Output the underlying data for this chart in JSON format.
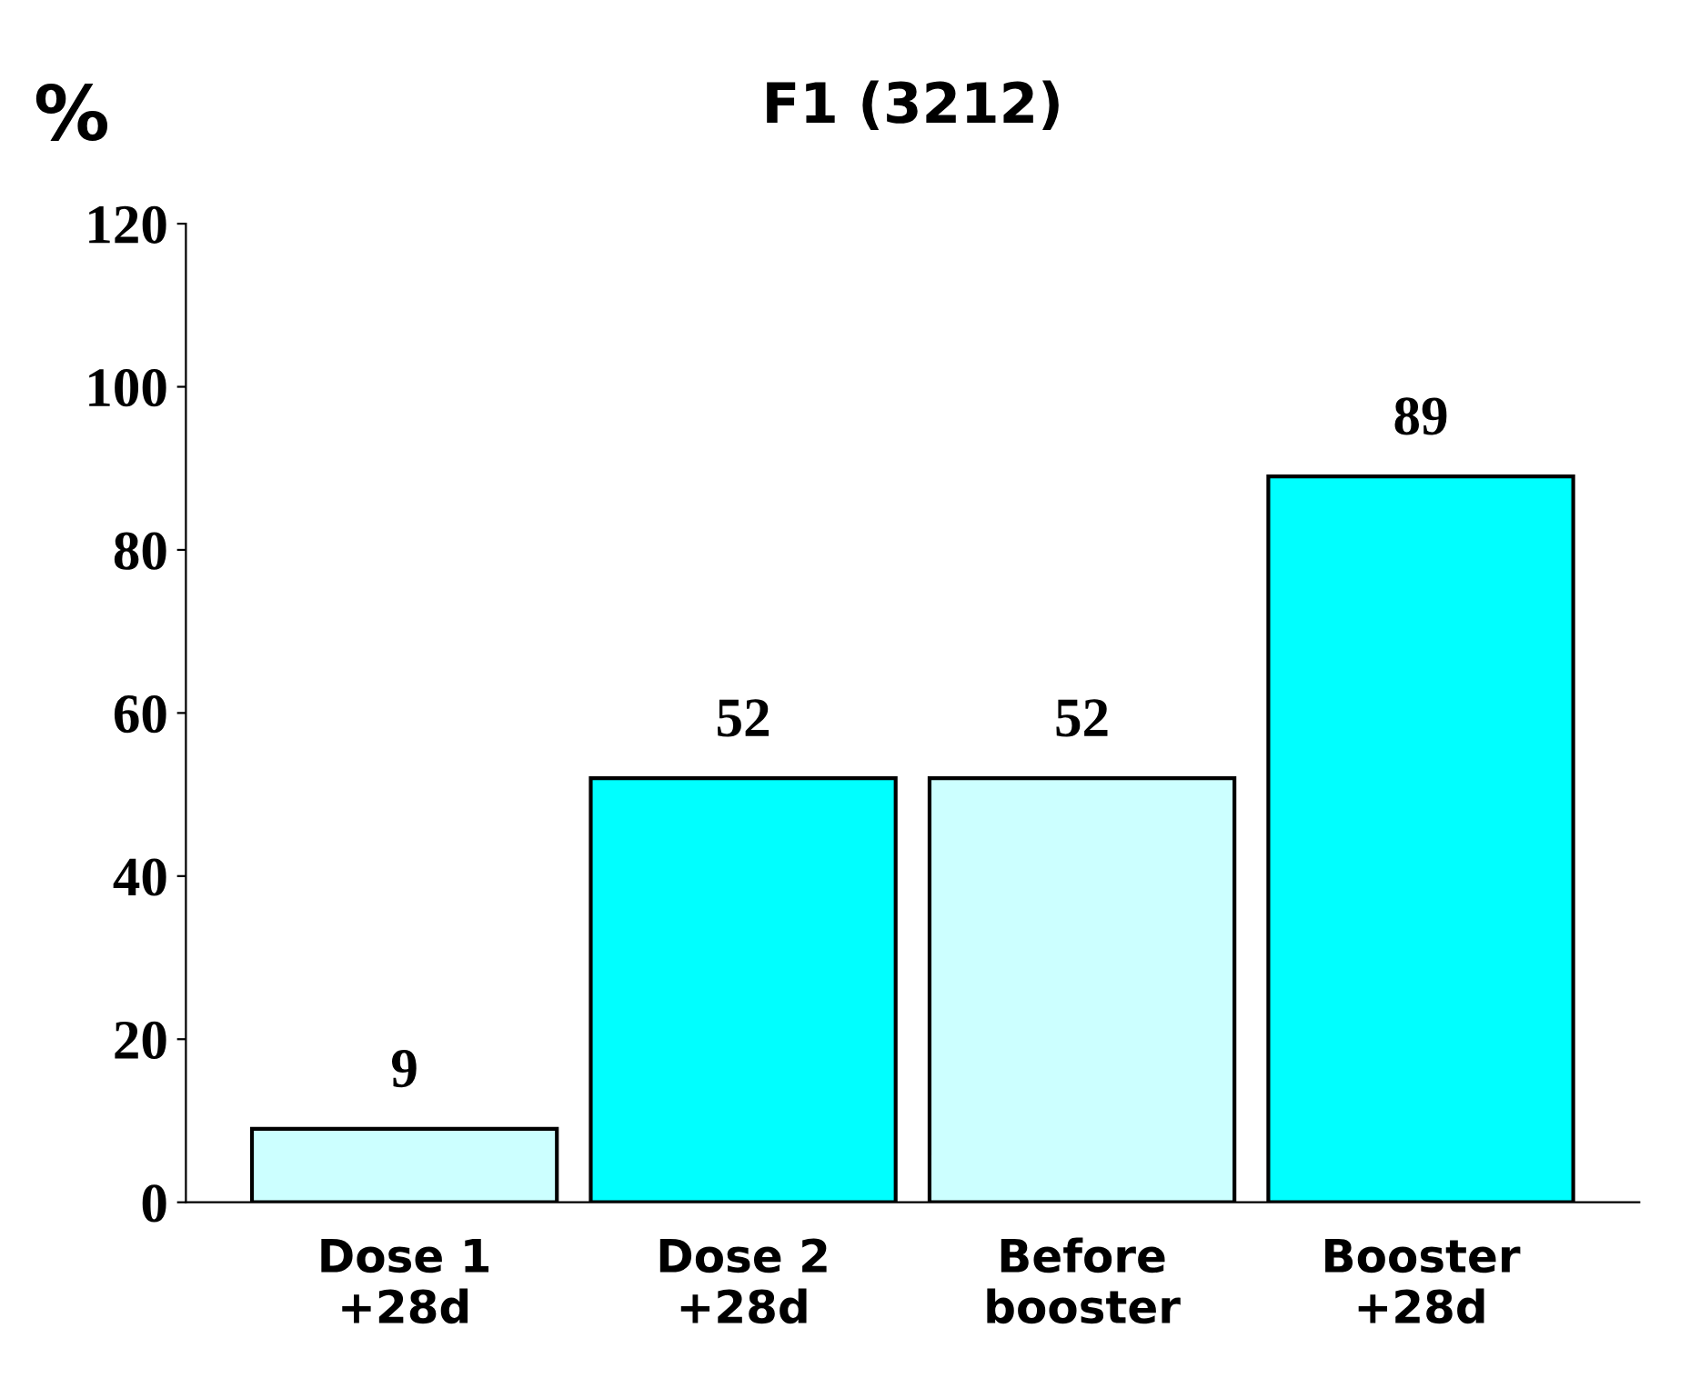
{
  "chart_data": {
    "type": "bar",
    "title": "F1 (3212)",
    "ylabel": "%",
    "categories": [
      "Dose 1\n+28d",
      "Dose 2\n+28d",
      "Before\nbooster",
      "Booster\n+28d"
    ],
    "values": [
      9,
      52,
      52,
      89
    ],
    "colors": [
      "#ccffff",
      "#00ffff",
      "#ccffff",
      "#00ffff"
    ],
    "ylim": [
      0,
      120
    ],
    "yticks": [
      0,
      20,
      40,
      60,
      80,
      100,
      120
    ],
    "data_labels": true,
    "grid": false,
    "legend": false
  }
}
